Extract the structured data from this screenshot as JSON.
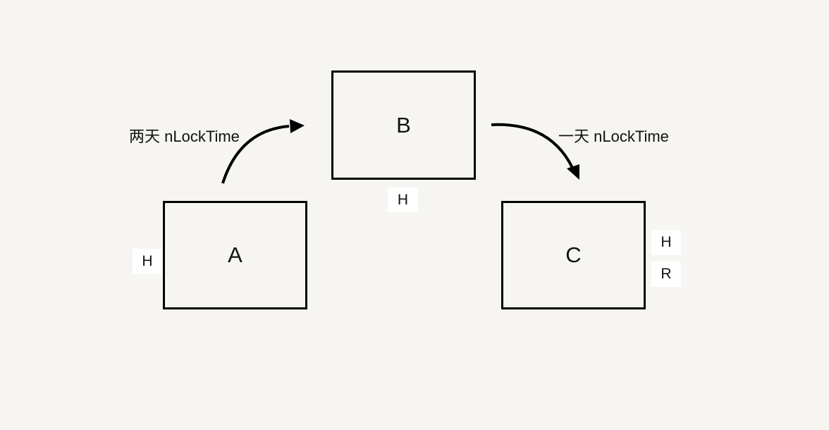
{
  "nodes": {
    "a": {
      "label": "A",
      "tags": [
        "H"
      ]
    },
    "b": {
      "label": "B",
      "tags": [
        "H"
      ]
    },
    "c": {
      "label": "C",
      "tags": [
        "H",
        "R"
      ]
    }
  },
  "edges": {
    "a_to_b": {
      "label": "两天 nLockTime"
    },
    "b_to_c": {
      "label": "一天 nLockTime"
    }
  },
  "colors": {
    "background": "#f6f5f2",
    "stroke": "#000000",
    "tag_background": "#ffffff"
  }
}
